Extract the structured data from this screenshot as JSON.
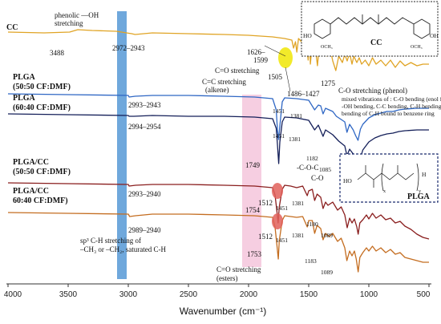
{
  "chart_data": {
    "type": "line",
    "xlabel": "Wavenumber (cm⁻¹)",
    "xlim": [
      4000,
      500
    ],
    "x_ticks": [
      "4000",
      "3500",
      "3000",
      "2500",
      "2000",
      "1500",
      "1000",
      "500"
    ],
    "x_tick_values": [
      4000,
      3500,
      3000,
      2500,
      2000,
      1500,
      1000,
      500
    ],
    "grid": false,
    "series": [
      {
        "name": "CC",
        "color": "#e0a425",
        "baseline": 40,
        "points": [
          [
            4000,
            0
          ],
          [
            3700,
            1
          ],
          [
            3488,
            0
          ],
          [
            3420,
            -3
          ],
          [
            3300,
            -2
          ],
          [
            3100,
            -1
          ],
          [
            2972,
            2
          ],
          [
            2943,
            3
          ],
          [
            2800,
            1
          ],
          [
            2500,
            2
          ],
          [
            2200,
            3
          ],
          [
            2000,
            4
          ],
          [
            1800,
            6
          ],
          [
            1700,
            8
          ],
          [
            1640,
            10
          ],
          [
            1626,
            20
          ],
          [
            1610,
            12
          ],
          [
            1599,
            25
          ],
          [
            1585,
            8
          ],
          [
            1560,
            12
          ],
          [
            1530,
            5
          ],
          [
            1515,
            18
          ],
          [
            1505,
            35
          ],
          [
            1495,
            10
          ],
          [
            1486,
            40
          ],
          [
            1470,
            12
          ],
          [
            1440,
            25
          ],
          [
            1427,
            42
          ],
          [
            1410,
            15
          ],
          [
            1390,
            28
          ],
          [
            1370,
            20
          ],
          [
            1350,
            30
          ],
          [
            1320,
            22
          ],
          [
            1300,
            36
          ],
          [
            1275,
            48
          ],
          [
            1250,
            30
          ],
          [
            1220,
            38
          ],
          [
            1200,
            28
          ],
          [
            1180,
            36
          ],
          [
            1160,
            26
          ],
          [
            1140,
            40
          ],
          [
            1125,
            30
          ],
          [
            1100,
            38
          ],
          [
            1080,
            32
          ],
          [
            1060,
            40
          ],
          [
            1030,
            35
          ],
          [
            1000,
            42
          ],
          [
            970,
            32
          ],
          [
            940,
            40
          ],
          [
            900,
            35
          ],
          [
            860,
            42
          ],
          [
            820,
            35
          ],
          [
            780,
            44
          ],
          [
            740,
            36
          ],
          [
            700,
            42
          ],
          [
            650,
            38
          ],
          [
            600,
            42
          ],
          [
            550,
            40
          ],
          [
            500,
            40
          ]
        ]
      },
      {
        "name": "PLGA (50:50 CF:DMF)",
        "color": "#2f67c4",
        "baseline": 117,
        "points": [
          [
            4000,
            0
          ],
          [
            3500,
            1
          ],
          [
            3000,
            2
          ],
          [
            2993,
            4
          ],
          [
            2943,
            3
          ],
          [
            2800,
            2
          ],
          [
            2500,
            2
          ],
          [
            2200,
            3
          ],
          [
            1950,
            4
          ],
          [
            1800,
            6
          ],
          [
            1770,
            20
          ],
          [
            1760,
            45
          ],
          [
            1750,
            57
          ],
          [
            1740,
            40
          ],
          [
            1720,
            10
          ],
          [
            1700,
            5
          ],
          [
            1600,
            6
          ],
          [
            1500,
            8
          ],
          [
            1451,
            20
          ],
          [
            1420,
            14
          ],
          [
            1400,
            15
          ],
          [
            1381,
            25
          ],
          [
            1360,
            18
          ],
          [
            1300,
            22
          ],
          [
            1270,
            28
          ],
          [
            1200,
            35
          ],
          [
            1182,
            48
          ],
          [
            1160,
            38
          ],
          [
            1130,
            45
          ],
          [
            1110,
            52
          ],
          [
            1090,
            58
          ],
          [
            1070,
            44
          ],
          [
            1050,
            38
          ],
          [
            1000,
            30
          ],
          [
            950,
            26
          ],
          [
            900,
            24
          ],
          [
            850,
            22
          ],
          [
            800,
            22
          ],
          [
            750,
            20
          ],
          [
            700,
            19
          ],
          [
            600,
            18
          ],
          [
            500,
            18
          ]
        ]
      },
      {
        "name": "PLGA (60:40 CF:DMF)",
        "color": "#141f59",
        "baseline": 142,
        "points": [
          [
            4000,
            0
          ],
          [
            3500,
            1
          ],
          [
            3000,
            2
          ],
          [
            2994,
            3
          ],
          [
            2954,
            3
          ],
          [
            2800,
            2
          ],
          [
            2500,
            3
          ],
          [
            2200,
            3
          ],
          [
            1950,
            4
          ],
          [
            1800,
            6
          ],
          [
            1770,
            18
          ],
          [
            1760,
            38
          ],
          [
            1749,
            62
          ],
          [
            1740,
            35
          ],
          [
            1720,
            10
          ],
          [
            1700,
            4
          ],
          [
            1600,
            5
          ],
          [
            1500,
            8
          ],
          [
            1451,
            20
          ],
          [
            1420,
            14
          ],
          [
            1381,
            28
          ],
          [
            1360,
            20
          ],
          [
            1300,
            26
          ],
          [
            1250,
            34
          ],
          [
            1200,
            40
          ],
          [
            1182,
            52
          ],
          [
            1160,
            44
          ],
          [
            1130,
            50
          ],
          [
            1110,
            60
          ],
          [
            1085,
            72
          ],
          [
            1070,
            55
          ],
          [
            1050,
            45
          ],
          [
            1000,
            35
          ],
          [
            950,
            30
          ],
          [
            900,
            27
          ],
          [
            850,
            25
          ],
          [
            800,
            24
          ],
          [
            750,
            22
          ],
          [
            700,
            21
          ],
          [
            600,
            20
          ],
          [
            500,
            20
          ]
        ]
      },
      {
        "name": "PLGA/CC (50:50 CF:DMF)",
        "color": "#8a1e1e",
        "baseline": 228,
        "points": [
          [
            4000,
            0
          ],
          [
            3500,
            1
          ],
          [
            3000,
            2
          ],
          [
            2993,
            4
          ],
          [
            2940,
            3
          ],
          [
            2800,
            2
          ],
          [
            2500,
            2
          ],
          [
            2200,
            3
          ],
          [
            1950,
            4
          ],
          [
            1800,
            6
          ],
          [
            1780,
            15
          ],
          [
            1765,
            35
          ],
          [
            1754,
            50
          ],
          [
            1745,
            30
          ],
          [
            1720,
            8
          ],
          [
            1700,
            3
          ],
          [
            1650,
            4
          ],
          [
            1600,
            6
          ],
          [
            1550,
            4
          ],
          [
            1512,
            16
          ],
          [
            1500,
            10
          ],
          [
            1470,
            8
          ],
          [
            1451,
            22
          ],
          [
            1430,
            14
          ],
          [
            1400,
            18
          ],
          [
            1381,
            32
          ],
          [
            1360,
            24
          ],
          [
            1340,
            28
          ],
          [
            1300,
            24
          ],
          [
            1260,
            34
          ],
          [
            1230,
            30
          ],
          [
            1200,
            40
          ],
          [
            1180,
            56
          ],
          [
            1160,
            44
          ],
          [
            1140,
            50
          ],
          [
            1120,
            45
          ],
          [
            1100,
            55
          ],
          [
            1089,
            64
          ],
          [
            1075,
            50
          ],
          [
            1050,
            46
          ],
          [
            1020,
            40
          ],
          [
            1000,
            45
          ],
          [
            970,
            38
          ],
          [
            940,
            44
          ],
          [
            900,
            40
          ],
          [
            860,
            46
          ],
          [
            820,
            44
          ],
          [
            780,
            50
          ],
          [
            740,
            48
          ],
          [
            700,
            54
          ],
          [
            650,
            58
          ],
          [
            600,
            64
          ],
          [
            550,
            68
          ],
          [
            500,
            70
          ]
        ]
      },
      {
        "name": "PLGA/CC 60:40 CF:DMF)",
        "color": "#c46d20",
        "baseline": 265,
        "points": [
          [
            4000,
            0
          ],
          [
            3500,
            1
          ],
          [
            3000,
            2
          ],
          [
            2989,
            5
          ],
          [
            2940,
            4
          ],
          [
            2800,
            2
          ],
          [
            2500,
            2
          ],
          [
            2200,
            3
          ],
          [
            1950,
            4
          ],
          [
            1800,
            6
          ],
          [
            1780,
            18
          ],
          [
            1765,
            40
          ],
          [
            1753,
            58
          ],
          [
            1745,
            35
          ],
          [
            1720,
            10
          ],
          [
            1700,
            4
          ],
          [
            1650,
            5
          ],
          [
            1600,
            6
          ],
          [
            1550,
            5
          ],
          [
            1512,
            18
          ],
          [
            1500,
            10
          ],
          [
            1470,
            10
          ],
          [
            1451,
            26
          ],
          [
            1430,
            16
          ],
          [
            1400,
            20
          ],
          [
            1381,
            34
          ],
          [
            1360,
            26
          ],
          [
            1330,
            30
          ],
          [
            1300,
            26
          ],
          [
            1260,
            36
          ],
          [
            1230,
            32
          ],
          [
            1200,
            44
          ],
          [
            1183,
            60
          ],
          [
            1160,
            48
          ],
          [
            1140,
            54
          ],
          [
            1120,
            48
          ],
          [
            1105,
            58
          ],
          [
            1089,
            74
          ],
          [
            1075,
            56
          ],
          [
            1050,
            50
          ],
          [
            1020,
            44
          ],
          [
            1000,
            48
          ],
          [
            970,
            42
          ],
          [
            940,
            48
          ],
          [
            900,
            44
          ],
          [
            860,
            50
          ],
          [
            820,
            46
          ],
          [
            780,
            52
          ],
          [
            740,
            50
          ],
          [
            700,
            56
          ],
          [
            650,
            58
          ],
          [
            600,
            60
          ],
          [
            550,
            62
          ],
          [
            500,
            62
          ]
        ]
      }
    ]
  },
  "series_labels": [
    {
      "text": "CC"
    },
    {
      "line1": "PLGA",
      "line2": "(50:50 CF:DMF)"
    },
    {
      "line1": "PLGA",
      "line2": "(60:40 CF:DMF)"
    },
    {
      "line1": "PLGA/CC",
      "line2": "(50:50 CF:DMF)"
    },
    {
      "line1": "PLGA/CC",
      "line2": "60:40 CF:DMF)"
    }
  ],
  "annotations": {
    "phenolic_line1": "phenolic  —OH",
    "phenolic_line2": "stretching",
    "a3488": "3488",
    "a2972": "2972–2943",
    "a2993a": "2993–2943",
    "a2994": "2994–2954",
    "a2993b": "2993–2940",
    "a2989": "2989–2940",
    "co_stretch": "C=O stretching",
    "a1626": "1626–",
    "a1599": "1599",
    "a1505": "1505",
    "cc_line1": "C=C stretching",
    "cc_line2": "(alkene)",
    "a1486": "1486–1427",
    "a1275": "1275",
    "phenol_co": "C-O stretching (phenol)",
    "mixed1": "mixed vibrations of : C-O bending (enol form),",
    "mixed2": "-OH bending, C-C bending, C-H bending, olefinic",
    "mixed3": "bending of C-H bound to benzene ring",
    "p1451a": "1451",
    "p1381a": "1381",
    "p1451b": "1451",
    "p1381b": "1381",
    "p1749": "1749",
    "p1182": "1182",
    "coc": "-C-O-C",
    "p1085": "1085",
    "co": "C-O",
    "p1754": "1754",
    "p1512a": "1512",
    "p1451c": "1451",
    "p1381c": "1381",
    "p1180": "1180",
    "p1089a": "1089",
    "p1753": "1753",
    "p1512b": "1512",
    "p1451d": "1451",
    "p1381d": "1381",
    "p1183": "1183",
    "p1089b": "1089",
    "sp3_1": "sp³ C-H stretching of",
    "sp3_2": "–CH₃ or –CH₂, saturated C-H",
    "ester1": "C=O stretching",
    "ester2": "(esters)"
  },
  "cc_box": {
    "label": "CC",
    "ho_left": "HO",
    "och3_left": "OCH₃",
    "oh_right": "OH",
    "och3_right": "OCH₃"
  },
  "plga_box": {
    "label": "PLGA",
    "ho": "HO",
    "sub_x": "x",
    "sub_y": "y",
    "h": "H"
  },
  "colors": {
    "blue_band": "#6fa8dc",
    "pink_band": "#f4c6dc",
    "highlight_yellow": "#f2ea2a",
    "highlight_red": "#e0605a"
  }
}
